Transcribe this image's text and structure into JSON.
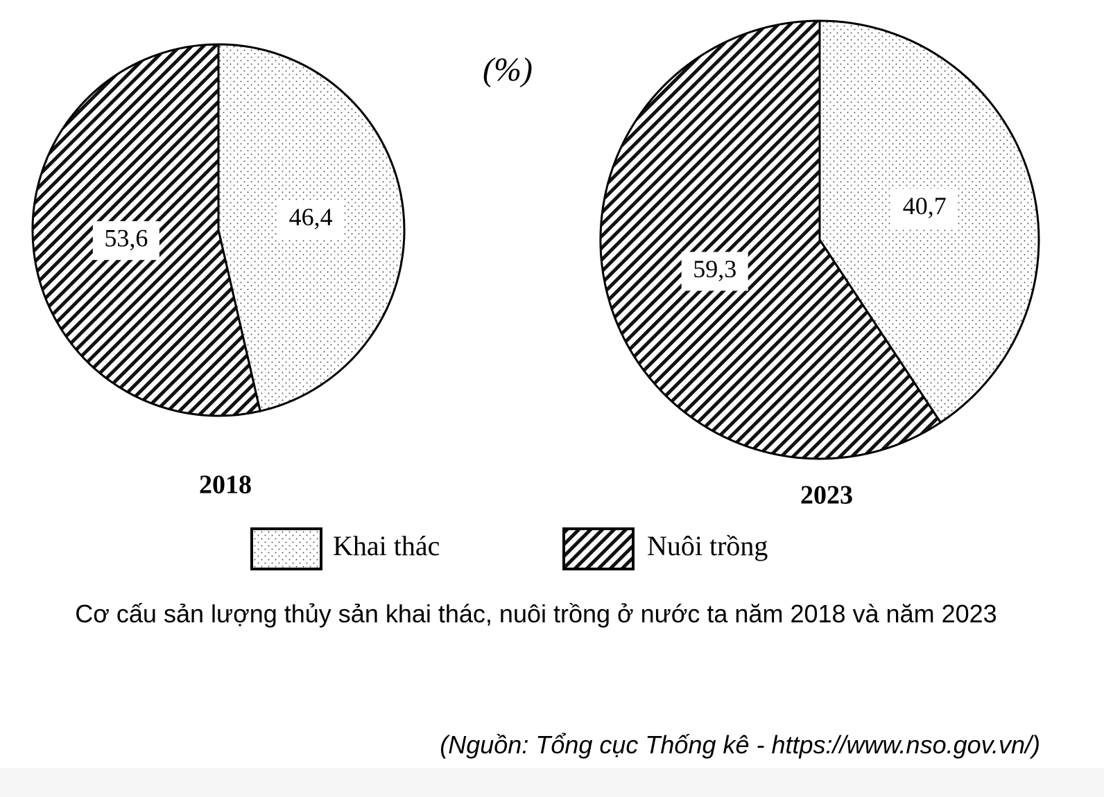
{
  "unit": "(%)",
  "chart_data": [
    {
      "type": "pie",
      "title": "2018",
      "categories": [
        "Khai thác",
        "Nuôi trồng"
      ],
      "values": [
        46.4,
        53.6
      ],
      "value_labels": [
        "46,4",
        "53,6"
      ]
    },
    {
      "type": "pie",
      "title": "2023",
      "categories": [
        "Khai thác",
        "Nuôi trồng"
      ],
      "values": [
        40.7,
        59.3
      ],
      "value_labels": [
        "40,7",
        "59,3"
      ]
    }
  ],
  "caption": "Cơ cấu sản lượng thủy sản khai thác, nuôi trồng ở nước ta năm 2018 và năm 2023",
  "source": "(Nguồn: Tổng cục Thống kê - https://www.nso.gov.vn/)"
}
